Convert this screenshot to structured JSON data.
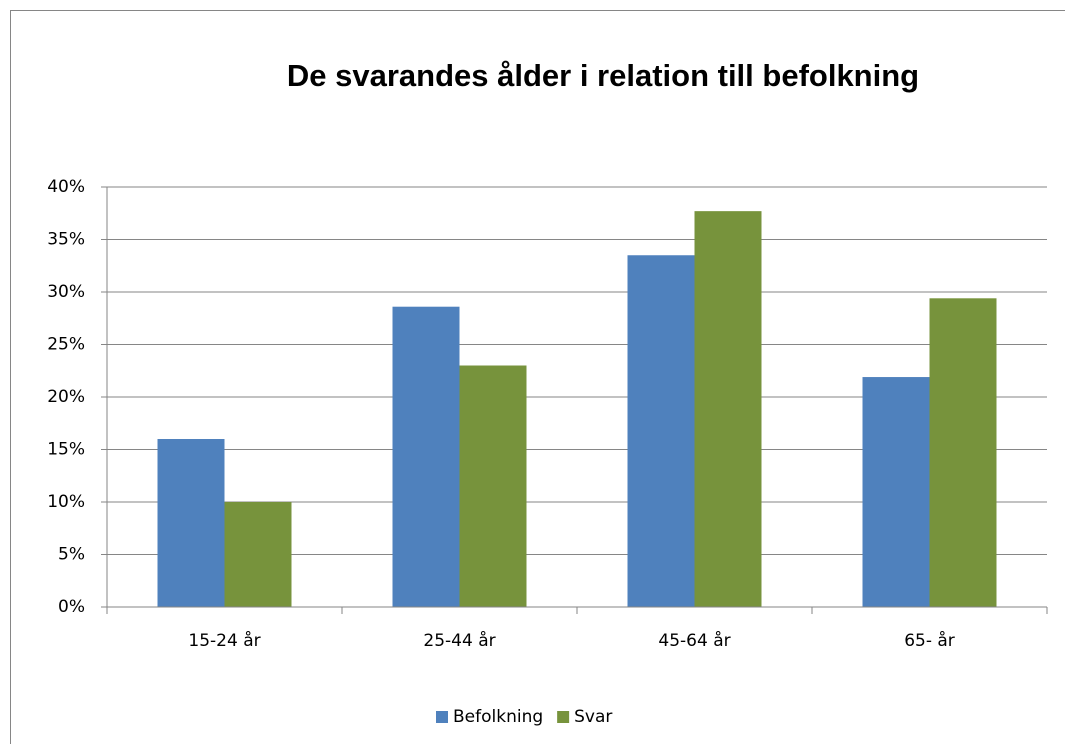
{
  "chart_data": {
    "type": "bar",
    "title": "De svarandes ålder i relation till befolkning",
    "categories": [
      "15-24 år",
      "25-44 år",
      "45-64 år",
      "65- år"
    ],
    "series": [
      {
        "name": "Befolkning",
        "color": "#4f81bd",
        "values": [
          16.0,
          28.6,
          33.5,
          21.9
        ]
      },
      {
        "name": "Svar",
        "color": "#77933c",
        "values": [
          10.0,
          23.0,
          37.7,
          29.4
        ]
      }
    ],
    "ylim": [
      0,
      40
    ],
    "yticks": [
      {
        "value": 0,
        "label": "0%"
      },
      {
        "value": 5,
        "label": "5%"
      },
      {
        "value": 10,
        "label": "10%"
      },
      {
        "value": 15,
        "label": "15%"
      },
      {
        "value": 20,
        "label": "20%"
      },
      {
        "value": 25,
        "label": "25%"
      },
      {
        "value": 30,
        "label": "30%"
      },
      {
        "value": 35,
        "label": "35%"
      },
      {
        "value": 40,
        "label": "40%"
      }
    ],
    "grid": true,
    "legend": "bottom"
  }
}
